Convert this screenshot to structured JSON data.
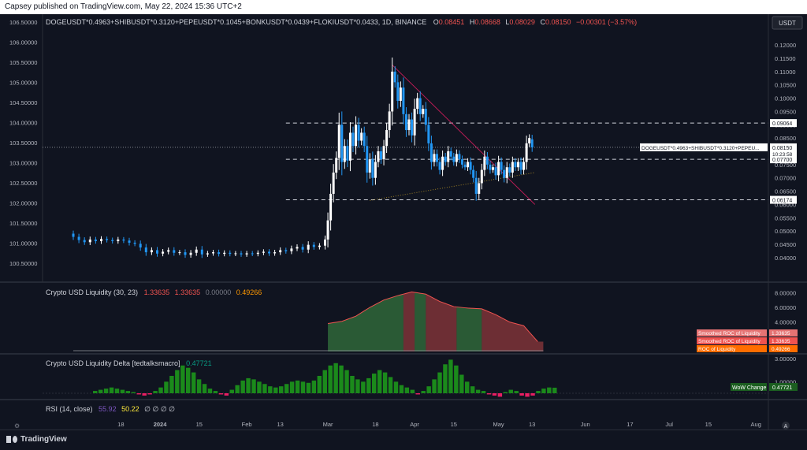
{
  "header": {
    "published": "Capsey published on TradingView.com, May 22, 2024 15:36 UTC+2"
  },
  "main": {
    "symbol_line": "DOGEUSDT*0.4963+SHIBUSDT*0.3120+PEPEUSDT*0.1045+BONKUSDT*0.0439+FLOKIUSDT*0.0433, 1D, BINANCE",
    "o_label": "O",
    "o_value": "0.08451",
    "h_label": "H",
    "h_value": "0.08668",
    "l_label": "L",
    "l_value": "0.08029",
    "c_label": "C",
    "c_value": "0.08150",
    "change": "−0.00301 (−3.57%)",
    "currency": "USDT",
    "price_tag_label": "DOGEUSDT*0.4963+SHIBUSDT*0.3120+PEPEU...",
    "price_tag_value": "0.08150",
    "countdown": "10:23:58",
    "level_tags": [
      "0.09064",
      "0.07700",
      "0.06174"
    ]
  },
  "liquidity": {
    "title": "Crypto USD Liquidity (30, 23)",
    "v1": "1.33635",
    "v2": "1.33635",
    "v3": "0.00000",
    "v4": "0.49266",
    "legend": [
      {
        "label": "Smoothed ROC of Liquidity",
        "value": "1.33635",
        "color": "#e57373"
      },
      {
        "label": "Smoothed ROC of Liquidity",
        "value": "1.33635",
        "color": "#ef5350"
      },
      {
        "label": "ROC of Liquidity",
        "value": "0.49266",
        "color": "#ff6d00"
      }
    ],
    "colors": {
      "v1": "#ef5350",
      "v2": "#ef5350",
      "v3": "#787b86",
      "v4": "#ff9800"
    }
  },
  "delta": {
    "title": "Crypto USD Liquidity Delta [tedtalksmacro]",
    "value": "0.47721",
    "legend_label": "WoW Change",
    "legend_value": "0.47721",
    "color": "#089981"
  },
  "rsi": {
    "title": "RSI (14, close)",
    "v1": "55.92",
    "v2": "50.22",
    "na": "∅ ∅ ∅ ∅",
    "colors": {
      "v1": "#7e57c2",
      "v2": "#ffeb3b"
    }
  },
  "footer": {
    "brand": "TradingView"
  },
  "chart_data": [
    {
      "type": "candlestick",
      "title": "DOGEUSDT*0.4963+SHIBUSDT*0.3120+PEPEUSDT*0.1045+BONKUSDT*0.0439+FLOKIUSDT*0.0433, 1D, BINANCE",
      "interval": "1D",
      "right_axis_ticks": [
        "0.12000",
        "0.11500",
        "0.11000",
        "0.10500",
        "0.10000",
        "0.09500",
        "0.09000",
        "0.08500",
        "0.08000",
        "0.07500",
        "0.07000",
        "0.06500",
        "0.06000",
        "0.05500",
        "0.05000",
        "0.04500",
        "0.04000"
      ],
      "left_axis_ticks": [
        "106.50000",
        "106.00000",
        "105.50000",
        "105.00000",
        "104.50000",
        "104.00000",
        "103.50000",
        "103.00000",
        "102.50000",
        "102.00000",
        "101.50000",
        "101.00000",
        "100.50000"
      ],
      "x_ticks": [
        "18",
        "2024",
        "15",
        "Feb",
        "13",
        "Mar",
        "18",
        "Apr",
        "15",
        "May",
        "13",
        "Jun",
        "17",
        "Jul",
        "15",
        "Aug"
      ],
      "x_tick_days": [
        17,
        31,
        45,
        62,
        74,
        91,
        108,
        122,
        136,
        152,
        164,
        183,
        199,
        213,
        227,
        244
      ],
      "ylim": [
        0.0355,
        0.1245
      ],
      "last_close": 0.0815,
      "horizontal_levels": [
        0.09064,
        0.077,
        0.06174
      ],
      "candles": [
        {
          "d": 0,
          "o": 0.049,
          "c": 0.0478
        },
        {
          "d": 2,
          "o": 0.0478,
          "c": 0.0466
        },
        {
          "d": 4,
          "o": 0.0466,
          "c": 0.0458
        },
        {
          "d": 6,
          "o": 0.0458,
          "c": 0.0468
        },
        {
          "d": 8,
          "o": 0.0468,
          "c": 0.0462
        },
        {
          "d": 10,
          "o": 0.0462,
          "c": 0.047
        },
        {
          "d": 12,
          "o": 0.047,
          "c": 0.0466
        },
        {
          "d": 14,
          "o": 0.0466,
          "c": 0.0462
        },
        {
          "d": 16,
          "o": 0.0462,
          "c": 0.0468
        },
        {
          "d": 18,
          "o": 0.0468,
          "c": 0.0464
        },
        {
          "d": 20,
          "o": 0.0464,
          "c": 0.0456
        },
        {
          "d": 22,
          "o": 0.0456,
          "c": 0.0452
        },
        {
          "d": 24,
          "o": 0.0452,
          "c": 0.0438
        },
        {
          "d": 26,
          "o": 0.0438,
          "c": 0.042
        },
        {
          "d": 28,
          "o": 0.042,
          "c": 0.0428
        },
        {
          "d": 30,
          "o": 0.0428,
          "c": 0.0415
        },
        {
          "d": 32,
          "o": 0.0415,
          "c": 0.0422
        },
        {
          "d": 34,
          "o": 0.0422,
          "c": 0.0428
        },
        {
          "d": 36,
          "o": 0.0428,
          "c": 0.0418
        },
        {
          "d": 38,
          "o": 0.0418,
          "c": 0.042
        },
        {
          "d": 40,
          "o": 0.042,
          "c": 0.041
        },
        {
          "d": 42,
          "o": 0.041,
          "c": 0.0418
        },
        {
          "d": 44,
          "o": 0.0418,
          "c": 0.043
        },
        {
          "d": 46,
          "o": 0.043,
          "c": 0.0412
        },
        {
          "d": 48,
          "o": 0.0412,
          "c": 0.0416
        },
        {
          "d": 50,
          "o": 0.0416,
          "c": 0.042
        },
        {
          "d": 52,
          "o": 0.042,
          "c": 0.0414
        },
        {
          "d": 54,
          "o": 0.0414,
          "c": 0.0418
        },
        {
          "d": 56,
          "o": 0.0418,
          "c": 0.0414
        },
        {
          "d": 58,
          "o": 0.0414,
          "c": 0.0416
        },
        {
          "d": 60,
          "o": 0.0416,
          "c": 0.0412
        },
        {
          "d": 62,
          "o": 0.0412,
          "c": 0.0416
        },
        {
          "d": 64,
          "o": 0.0416,
          "c": 0.0414
        },
        {
          "d": 66,
          "o": 0.0414,
          "c": 0.0418
        },
        {
          "d": 68,
          "o": 0.0418,
          "c": 0.0422
        },
        {
          "d": 70,
          "o": 0.0422,
          "c": 0.0416
        },
        {
          "d": 72,
          "o": 0.0416,
          "c": 0.042
        },
        {
          "d": 74,
          "o": 0.042,
          "c": 0.0428
        },
        {
          "d": 76,
          "o": 0.0428,
          "c": 0.0424
        },
        {
          "d": 78,
          "o": 0.0424,
          "c": 0.0434
        },
        {
          "d": 80,
          "o": 0.0434,
          "c": 0.044
        },
        {
          "d": 82,
          "o": 0.044,
          "c": 0.043
        },
        {
          "d": 84,
          "o": 0.043,
          "c": 0.0448
        },
        {
          "d": 86,
          "o": 0.0448,
          "c": 0.044
        },
        {
          "d": 88,
          "o": 0.044,
          "c": 0.0445
        },
        {
          "d": 90,
          "o": 0.0445,
          "c": 0.0468
        },
        {
          "d": 91,
          "o": 0.0468,
          "c": 0.054
        },
        {
          "d": 92,
          "o": 0.054,
          "c": 0.064
        },
        {
          "d": 93,
          "o": 0.064,
          "c": 0.072
        },
        {
          "d": 94,
          "o": 0.072,
          "c": 0.0775
        },
        {
          "d": 95,
          "o": 0.0775,
          "c": 0.09
        },
        {
          "d": 96,
          "o": 0.09,
          "c": 0.076
        },
        {
          "d": 97,
          "o": 0.076,
          "c": 0.082
        },
        {
          "d": 98,
          "o": 0.082,
          "c": 0.0765
        },
        {
          "d": 99,
          "o": 0.0765,
          "c": 0.087
        },
        {
          "d": 100,
          "o": 0.087,
          "c": 0.082
        },
        {
          "d": 101,
          "o": 0.082,
          "c": 0.09
        },
        {
          "d": 102,
          "o": 0.09,
          "c": 0.084
        },
        {
          "d": 103,
          "o": 0.084,
          "c": 0.087
        },
        {
          "d": 104,
          "o": 0.087,
          "c": 0.082
        },
        {
          "d": 105,
          "o": 0.082,
          "c": 0.072
        },
        {
          "d": 106,
          "o": 0.072,
          "c": 0.077
        },
        {
          "d": 107,
          "o": 0.077,
          "c": 0.07
        },
        {
          "d": 108,
          "o": 0.07,
          "c": 0.076
        },
        {
          "d": 109,
          "o": 0.076,
          "c": 0.08
        },
        {
          "d": 110,
          "o": 0.08,
          "c": 0.077
        },
        {
          "d": 111,
          "o": 0.077,
          "c": 0.082
        },
        {
          "d": 112,
          "o": 0.082,
          "c": 0.088
        },
        {
          "d": 113,
          "o": 0.088,
          "c": 0.095
        },
        {
          "d": 114,
          "o": 0.095,
          "c": 0.11
        },
        {
          "d": 115,
          "o": 0.11,
          "c": 0.106
        },
        {
          "d": 116,
          "o": 0.106,
          "c": 0.099
        },
        {
          "d": 117,
          "o": 0.099,
          "c": 0.104
        },
        {
          "d": 118,
          "o": 0.104,
          "c": 0.094
        },
        {
          "d": 119,
          "o": 0.094,
          "c": 0.088
        },
        {
          "d": 120,
          "o": 0.088,
          "c": 0.092
        },
        {
          "d": 121,
          "o": 0.092,
          "c": 0.086
        },
        {
          "d": 122,
          "o": 0.086,
          "c": 0.096
        },
        {
          "d": 123,
          "o": 0.096,
          "c": 0.1
        },
        {
          "d": 124,
          "o": 0.1,
          "c": 0.094
        },
        {
          "d": 125,
          "o": 0.094,
          "c": 0.096
        },
        {
          "d": 126,
          "o": 0.096,
          "c": 0.09
        },
        {
          "d": 127,
          "o": 0.09,
          "c": 0.083
        },
        {
          "d": 128,
          "o": 0.083,
          "c": 0.076
        },
        {
          "d": 129,
          "o": 0.076,
          "c": 0.079
        },
        {
          "d": 130,
          "o": 0.079,
          "c": 0.076
        },
        {
          "d": 131,
          "o": 0.076,
          "c": 0.073
        },
        {
          "d": 132,
          "o": 0.073,
          "c": 0.078
        },
        {
          "d": 133,
          "o": 0.078,
          "c": 0.076
        },
        {
          "d": 134,
          "o": 0.076,
          "c": 0.08
        },
        {
          "d": 135,
          "o": 0.08,
          "c": 0.078
        },
        {
          "d": 136,
          "o": 0.078,
          "c": 0.076
        },
        {
          "d": 137,
          "o": 0.076,
          "c": 0.079
        },
        {
          "d": 138,
          "o": 0.079,
          "c": 0.077
        },
        {
          "d": 139,
          "o": 0.077,
          "c": 0.075
        },
        {
          "d": 140,
          "o": 0.075,
          "c": 0.074
        },
        {
          "d": 141,
          "o": 0.074,
          "c": 0.076
        },
        {
          "d": 142,
          "o": 0.076,
          "c": 0.073
        },
        {
          "d": 143,
          "o": 0.073,
          "c": 0.07
        },
        {
          "d": 144,
          "o": 0.07,
          "c": 0.064
        },
        {
          "d": 145,
          "o": 0.064,
          "c": 0.068
        },
        {
          "d": 146,
          "o": 0.068,
          "c": 0.073
        },
        {
          "d": 147,
          "o": 0.073,
          "c": 0.078
        },
        {
          "d": 148,
          "o": 0.078,
          "c": 0.075
        },
        {
          "d": 149,
          "o": 0.075,
          "c": 0.073
        },
        {
          "d": 150,
          "o": 0.073,
          "c": 0.074
        },
        {
          "d": 151,
          "o": 0.074,
          "c": 0.071
        },
        {
          "d": 152,
          "o": 0.071,
          "c": 0.076
        },
        {
          "d": 153,
          "o": 0.076,
          "c": 0.073
        },
        {
          "d": 154,
          "o": 0.073,
          "c": 0.07
        },
        {
          "d": 155,
          "o": 0.07,
          "c": 0.074
        },
        {
          "d": 156,
          "o": 0.074,
          "c": 0.072
        },
        {
          "d": 157,
          "o": 0.072,
          "c": 0.076
        },
        {
          "d": 158,
          "o": 0.076,
          "c": 0.074
        },
        {
          "d": 159,
          "o": 0.074,
          "c": 0.076
        },
        {
          "d": 160,
          "o": 0.076,
          "c": 0.073
        },
        {
          "d": 161,
          "o": 0.073,
          "c": 0.076
        },
        {
          "d": 162,
          "o": 0.076,
          "c": 0.083
        },
        {
          "d": 163,
          "o": 0.083,
          "c": 0.085
        },
        {
          "d": 164,
          "o": 0.08451,
          "c": 0.0815
        }
      ],
      "trendlines": [
        {
          "x": [
            106,
            165
          ],
          "y": [
            0.0615,
            0.072
          ],
          "color": "#c9a227",
          "style": "dotted"
        },
        {
          "x": [
            114,
            165
          ],
          "y": [
            0.1125,
            0.06
          ],
          "color": "#e91e63",
          "style": "solid"
        }
      ]
    },
    {
      "type": "area",
      "title": "Crypto USD Liquidity (30, 23)",
      "y_ticks": [
        "8.00000",
        "6.00000",
        "4.00000"
      ],
      "x_days": [
        91,
        96,
        101,
        106,
        111,
        116,
        121,
        126,
        131,
        136,
        141,
        146,
        151,
        156,
        161,
        166
      ],
      "smoothed_roc": [
        3.8,
        4.1,
        4.8,
        6.0,
        7.0,
        7.6,
        8.1,
        7.8,
        6.8,
        6.1,
        5.9,
        5.8,
        5.0,
        4.0,
        3.5,
        1.34
      ],
      "bands": [
        {
          "from": 91,
          "to": 118,
          "color": "green"
        },
        {
          "from": 118,
          "to": 122,
          "color": "red"
        },
        {
          "from": 122,
          "to": 126,
          "color": "green"
        },
        {
          "from": 126,
          "to": 137,
          "color": "red"
        },
        {
          "from": 137,
          "to": 146,
          "color": "green"
        },
        {
          "from": 146,
          "to": 168,
          "color": "red"
        }
      ]
    },
    {
      "type": "bar",
      "title": "Crypto USD Liquidity Delta [tedtalksmacro]",
      "y_ticks": [
        "3.00000",
        "1.00000"
      ],
      "values": [
        0.2,
        0.3,
        0.4,
        0.5,
        0.4,
        0.3,
        0.2,
        0.1,
        -0.1,
        -0.2,
        -0.1,
        0.2,
        0.5,
        1.0,
        1.5,
        2.0,
        2.4,
        2.2,
        1.8,
        1.2,
        0.8,
        0.4,
        0.2,
        -0.1,
        -0.2,
        0.3,
        0.7,
        1.1,
        1.3,
        1.2,
        1.0,
        0.8,
        0.6,
        0.5,
        0.6,
        0.8,
        1.0,
        1.1,
        1.0,
        0.9,
        1.1,
        1.5,
        2.0,
        2.4,
        2.6,
        2.4,
        2.0,
        1.5,
        1.2,
        1.0,
        1.3,
        1.7,
        2.0,
        1.8,
        1.4,
        1.0,
        0.7,
        0.5,
        0.3,
        -0.1,
        0.2,
        0.6,
        1.2,
        1.8,
        2.5,
        2.9,
        2.4,
        1.6,
        1.0,
        0.6,
        0.3,
        0.2,
        -0.1,
        -0.2,
        -0.3,
        0.1,
        0.3,
        0.2,
        -0.2,
        -0.3,
        -0.2,
        0.2,
        0.4,
        0.5,
        0.48
      ]
    }
  ]
}
